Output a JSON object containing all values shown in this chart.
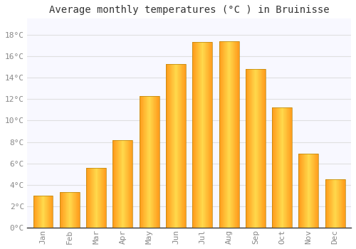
{
  "months": [
    "Jan",
    "Feb",
    "Mar",
    "Apr",
    "May",
    "Jun",
    "Jul",
    "Aug",
    "Sep",
    "Oct",
    "Nov",
    "Dec"
  ],
  "temperatures": [
    3.0,
    3.3,
    5.6,
    8.2,
    12.3,
    15.3,
    17.3,
    17.4,
    14.8,
    11.2,
    6.9,
    4.5
  ],
  "bar_color": "#FFA500",
  "bar_edge_color": "#CC7A00",
  "title": "Average monthly temperatures (°C ) in Bruinisse",
  "title_fontsize": 10,
  "ylabel_ticks": [
    0,
    2,
    4,
    6,
    8,
    10,
    12,
    14,
    16,
    18
  ],
  "ylim": [
    0,
    19.5
  ],
  "background_color": "#FFFFFF",
  "plot_bg_color": "#F8F8FF",
  "grid_color": "#E0E0E0",
  "tick_label_color": "#888888",
  "font_family": "monospace",
  "bar_width": 0.75
}
